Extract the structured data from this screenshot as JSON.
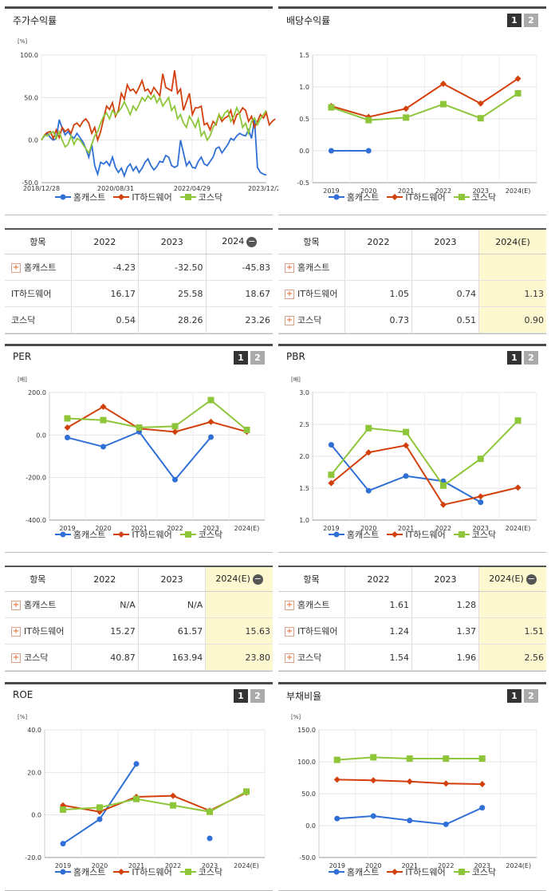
{
  "colors": {
    "s1": "#2f6fd6",
    "s2": "#d2400c",
    "s3": "#8ec63a"
  },
  "legend": [
    "홈캐스트",
    "IT하드웨어",
    "코스닥"
  ],
  "panels": [
    {
      "id": "stock",
      "title": "주가수익률",
      "btn1": "",
      "btn2": "",
      "unit": "[%]"
    },
    {
      "id": "div",
      "title": "배당수익률",
      "btn1": "1",
      "btn2": "2",
      "unit": ""
    },
    {
      "id": "per",
      "title": "PER",
      "btn1": "1",
      "btn2": "2",
      "unit": "[배]"
    },
    {
      "id": "pbr",
      "title": "PBR",
      "btn1": "1",
      "btn2": "2",
      "unit": "[배]"
    },
    {
      "id": "roe",
      "title": "ROE",
      "btn1": "1",
      "btn2": "2",
      "unit": "[%]"
    },
    {
      "id": "debt",
      "title": "부채비율",
      "btn1": "1",
      "btn2": "2",
      "unit": "[%]"
    }
  ],
  "chart_data": [
    {
      "id": "stock",
      "type": "line",
      "yticks": [
        "100.0",
        "50.0",
        "0.0",
        "-50.0"
      ],
      "ylim": [
        -50,
        100
      ],
      "xticks": [
        "2018/12/28",
        "2020/08/31",
        "2022/04/29",
        "2023/12/28"
      ],
      "series": [
        {
          "name": "홈캐스트",
          "values": [
            0,
            5,
            8,
            3,
            0,
            2,
            24,
            14,
            6,
            10,
            5,
            2,
            8,
            3,
            -2,
            -10,
            -20,
            -5,
            -30,
            -40,
            -26,
            -28,
            -25,
            -30,
            -20,
            -32,
            -38,
            -33,
            -42,
            -32,
            -28,
            -36,
            -31,
            -38,
            -33,
            -26,
            -22,
            -30,
            -35,
            -31,
            -25,
            -26,
            -18,
            -20,
            -30,
            -32,
            -30,
            0,
            -15,
            -30,
            -25,
            -32,
            -33,
            -25,
            -20,
            -28,
            -30,
            -25,
            -20,
            -10,
            -8,
            -15,
            -10,
            -5,
            2,
            0,
            5,
            8,
            6,
            5,
            12,
            2,
            25,
            -32,
            -38,
            -40,
            -41
          ]
        },
        {
          "name": "IT하드웨어",
          "values": [
            0,
            6,
            9,
            10,
            2,
            12,
            3,
            15,
            10,
            13,
            8,
            18,
            20,
            16,
            22,
            25,
            20,
            8,
            15,
            0,
            10,
            25,
            40,
            36,
            44,
            28,
            35,
            55,
            48,
            65,
            58,
            60,
            55,
            62,
            70,
            58,
            60,
            54,
            62,
            57,
            52,
            78,
            62,
            60,
            58,
            82,
            55,
            60,
            35,
            45,
            55,
            30,
            38,
            38,
            40,
            18,
            20,
            12,
            22,
            18,
            30,
            22,
            26,
            28,
            35,
            20,
            30,
            32,
            38,
            35,
            22,
            28,
            15,
            22,
            30,
            26,
            32,
            18,
            22,
            25
          ]
        },
        {
          "name": "코스닥",
          "values": [
            0,
            6,
            5,
            8,
            10,
            2,
            10,
            0,
            -8,
            -5,
            5,
            -5,
            2,
            0,
            -5,
            -10,
            -15,
            -5,
            5,
            10,
            20,
            28,
            32,
            25,
            35,
            30,
            33,
            38,
            45,
            38,
            30,
            40,
            35,
            42,
            50,
            46,
            52,
            48,
            53,
            44,
            50,
            40,
            45,
            50,
            35,
            40,
            25,
            30,
            20,
            15,
            28,
            22,
            15,
            25,
            5,
            10,
            0,
            5,
            15,
            20,
            30,
            25,
            32,
            35,
            22,
            28,
            38,
            30,
            15,
            20,
            8,
            22,
            26,
            18,
            25,
            30,
            35
          ]
        }
      ]
    },
    {
      "id": "div",
      "type": "line",
      "yticks": [
        "1.5",
        "1.0",
        "0.5",
        "0.0",
        "-0.5"
      ],
      "ylim": [
        -0.5,
        1.5
      ],
      "categories": [
        "2019",
        "2020",
        "2021",
        "2022",
        "2023",
        "2024(E)"
      ],
      "series": [
        {
          "name": "홈캐스트",
          "values": [
            0,
            0,
            null,
            null,
            null,
            null
          ]
        },
        {
          "name": "IT하드웨어",
          "values": [
            0.7,
            0.53,
            0.66,
            1.05,
            0.74,
            1.13
          ]
        },
        {
          "name": "코스닥",
          "values": [
            0.68,
            0.48,
            0.52,
            0.73,
            0.51,
            0.9
          ]
        }
      ]
    },
    {
      "id": "per",
      "type": "line",
      "yticks": [
        "200.0",
        "0.0",
        "-200.0",
        "-400.0"
      ],
      "ylim": [
        -400,
        200
      ],
      "categories": [
        "2019",
        "2020",
        "2021",
        "2022",
        "2023",
        "2024(E)"
      ],
      "series": [
        {
          "name": "홈캐스트",
          "values": [
            -12,
            -55,
            15,
            -210,
            -10,
            null
          ]
        },
        {
          "name": "IT하드웨어",
          "values": [
            35,
            133,
            30,
            15,
            61.57,
            15.63
          ]
        },
        {
          "name": "코스닥",
          "values": [
            78,
            70,
            35,
            40.87,
            163.94,
            23.8
          ]
        }
      ]
    },
    {
      "id": "pbr",
      "type": "line",
      "yticks": [
        "3.0",
        "2.5",
        "2.0",
        "1.5",
        "1.0"
      ],
      "ylim": [
        1,
        3
      ],
      "categories": [
        "2019",
        "2020",
        "2021",
        "2022",
        "2023",
        "2024(E)"
      ],
      "series": [
        {
          "name": "홈캐스트",
          "values": [
            2.18,
            1.46,
            1.69,
            1.61,
            1.28,
            null
          ]
        },
        {
          "name": "IT하드웨어",
          "values": [
            1.58,
            2.06,
            2.17,
            1.24,
            1.37,
            1.51
          ]
        },
        {
          "name": "코스닥",
          "values": [
            1.71,
            2.44,
            2.38,
            1.54,
            1.96,
            2.56
          ]
        }
      ]
    },
    {
      "id": "roe",
      "type": "line",
      "yticks": [
        "40.0",
        "20.0",
        "0.0",
        "-20.0"
      ],
      "ylim": [
        -20,
        40
      ],
      "categories": [
        "2019",
        "2020",
        "2021",
        "2022",
        "2023",
        "2024(E)"
      ],
      "series": [
        {
          "name": "홈캐스트",
          "values": [
            -13.5,
            -2,
            24,
            null,
            -11,
            null
          ],
          "segments": [
            [
              0,
              1,
              2
            ],
            [
              4
            ]
          ]
        },
        {
          "name": "IT하드웨어",
          "values": [
            4.5,
            1.5,
            8.5,
            9,
            2,
            10.5
          ]
        },
        {
          "name": "코스닥",
          "values": [
            2.5,
            3.5,
            7.5,
            4.5,
            1.5,
            11
          ]
        }
      ]
    },
    {
      "id": "debt",
      "type": "line",
      "yticks": [
        "150.0",
        "100.0",
        "50.0",
        "0.0",
        "-50.0"
      ],
      "ylim": [
        -50,
        150
      ],
      "categories": [
        "2019",
        "2020",
        "2021",
        "2022",
        "2023",
        "2024(E)"
      ],
      "series": [
        {
          "name": "홈캐스트",
          "values": [
            11,
            15,
            8,
            2,
            28,
            null
          ]
        },
        {
          "name": "IT하드웨어",
          "values": [
            72,
            71,
            69,
            66,
            65,
            null
          ]
        },
        {
          "name": "코스닥",
          "values": [
            103,
            107,
            105,
            105,
            105,
            null
          ]
        }
      ]
    }
  ],
  "tables": [
    {
      "id": "t_stock",
      "headers": [
        "항목",
        "2022",
        "2023",
        "2024"
      ],
      "minus": true,
      "hlcol": false,
      "rows": [
        [
          "홈캐스트",
          "-4.23",
          "-32.50",
          "-45.83"
        ],
        [
          "IT하드웨어",
          "16.17",
          "25.58",
          "18.67"
        ],
        [
          "코스닥",
          "0.54",
          "28.26",
          "23.26"
        ]
      ],
      "plus": [
        true,
        false,
        false
      ]
    },
    {
      "id": "t_div",
      "headers": [
        "항목",
        "2022",
        "2023",
        "2024(E)"
      ],
      "minus": false,
      "hlcol": true,
      "rows": [
        [
          "홈캐스트",
          "",
          "",
          ""
        ],
        [
          "IT하드웨어",
          "1.05",
          "0.74",
          "1.13"
        ],
        [
          "코스닥",
          "0.73",
          "0.51",
          "0.90"
        ]
      ],
      "plus": [
        true,
        true,
        true
      ]
    },
    {
      "id": "t_per",
      "headers": [
        "항목",
        "2022",
        "2023",
        "2024(E)"
      ],
      "minus": true,
      "hlcol": true,
      "rows": [
        [
          "홈캐스트",
          "N/A",
          "N/A",
          ""
        ],
        [
          "IT하드웨어",
          "15.27",
          "61.57",
          "15.63"
        ],
        [
          "코스닥",
          "40.87",
          "163.94",
          "23.80"
        ]
      ],
      "plus": [
        true,
        true,
        true
      ]
    },
    {
      "id": "t_pbr",
      "headers": [
        "항목",
        "2022",
        "2023",
        "2024(E)"
      ],
      "minus": true,
      "hlcol": true,
      "rows": [
        [
          "홈캐스트",
          "1.61",
          "1.28",
          ""
        ],
        [
          "IT하드웨어",
          "1.24",
          "1.37",
          "1.51"
        ],
        [
          "코스닥",
          "1.54",
          "1.96",
          "2.56"
        ]
      ],
      "plus": [
        true,
        true,
        true
      ]
    }
  ]
}
